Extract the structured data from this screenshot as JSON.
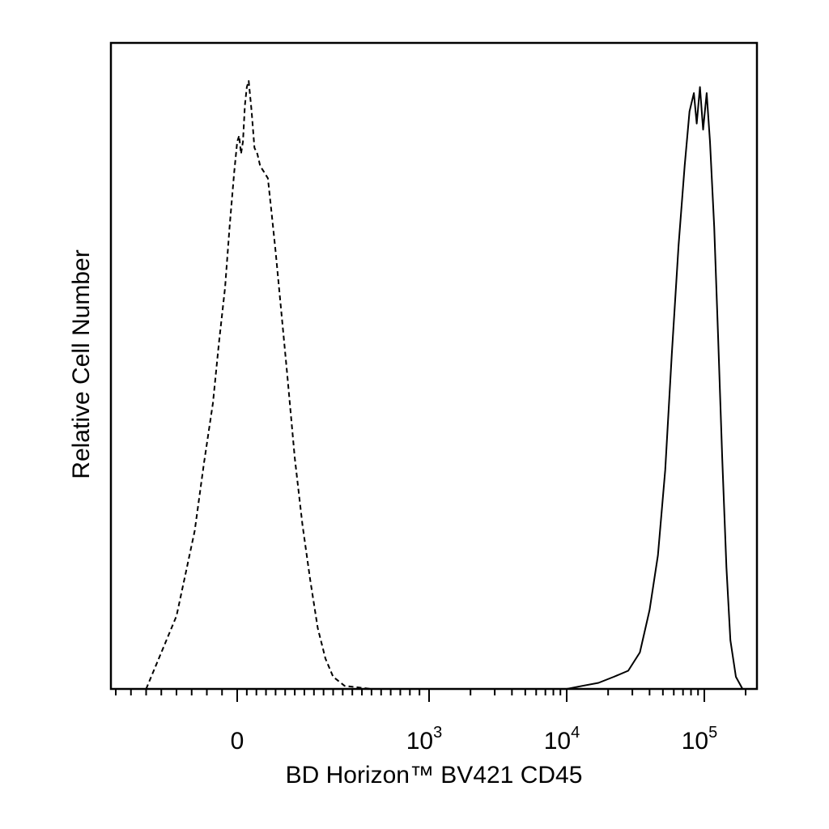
{
  "chart_data": {
    "type": "line",
    "title": "",
    "xlabel": "BD Horizon™  BV421 CD45",
    "ylabel": "Relative Cell Number",
    "x_scale": "biexponential",
    "x_ticks": [
      {
        "value": 0,
        "base": "0",
        "exp": ""
      },
      {
        "value": 1000,
        "base": "10",
        "exp": "3"
      },
      {
        "value": 10000,
        "base": "10",
        "exp": "4"
      },
      {
        "value": 100000,
        "base": "10",
        "exp": "5"
      }
    ],
    "ylim": [
      0,
      100
    ],
    "grid": false,
    "legend": "none",
    "series": [
      {
        "style": "dashed",
        "color": "#000000",
        "points": [
          [
            -300,
            0
          ],
          [
            -250,
            6
          ],
          [
            -200,
            12
          ],
          [
            -170,
            19
          ],
          [
            -140,
            26
          ],
          [
            -110,
            37
          ],
          [
            -80,
            47
          ],
          [
            -60,
            57
          ],
          [
            -40,
            66
          ],
          [
            -25,
            76
          ],
          [
            -10,
            85
          ],
          [
            0,
            90
          ],
          [
            10,
            91
          ],
          [
            20,
            88
          ],
          [
            30,
            90
          ],
          [
            40,
            96
          ],
          [
            50,
            99
          ],
          [
            60,
            100
          ],
          [
            75,
            95
          ],
          [
            90,
            89
          ],
          [
            105,
            88
          ],
          [
            120,
            86
          ],
          [
            140,
            85
          ],
          [
            160,
            84
          ],
          [
            180,
            78
          ],
          [
            200,
            72
          ],
          [
            230,
            62
          ],
          [
            260,
            52
          ],
          [
            300,
            38
          ],
          [
            340,
            27
          ],
          [
            380,
            18
          ],
          [
            420,
            10
          ],
          [
            460,
            5
          ],
          [
            500,
            2
          ],
          [
            560,
            0.5
          ],
          [
            700,
            0
          ],
          [
            20000,
            0
          ],
          [
            200000,
            0
          ]
        ]
      },
      {
        "style": "solid",
        "color": "#000000",
        "points": [
          [
            -300,
            0
          ],
          [
            10000,
            0
          ],
          [
            13000,
            0.5
          ],
          [
            17000,
            1
          ],
          [
            22000,
            2
          ],
          [
            28000,
            3
          ],
          [
            34000,
            6
          ],
          [
            40000,
            13
          ],
          [
            46000,
            22
          ],
          [
            52000,
            36
          ],
          [
            58000,
            55
          ],
          [
            65000,
            73
          ],
          [
            72000,
            86
          ],
          [
            78000,
            95
          ],
          [
            84000,
            98
          ],
          [
            88000,
            93
          ],
          [
            93000,
            99
          ],
          [
            98000,
            92
          ],
          [
            104000,
            98
          ],
          [
            110000,
            90
          ],
          [
            118000,
            76
          ],
          [
            126000,
            58
          ],
          [
            135000,
            38
          ],
          [
            145000,
            20
          ],
          [
            155000,
            8
          ],
          [
            170000,
            2
          ],
          [
            190000,
            0
          ],
          [
            200000,
            0
          ]
        ]
      }
    ]
  }
}
